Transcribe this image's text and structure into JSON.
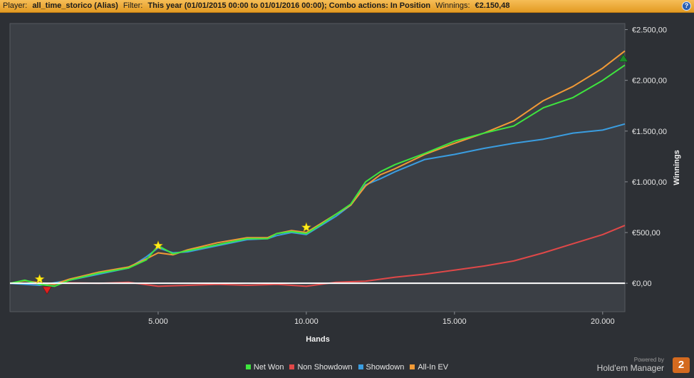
{
  "header": {
    "player_label": "Player:",
    "player_value": "all_time_storico (Alias)",
    "filter_label": "Filter:",
    "filter_value": "This year (01/01/2015 00:00 to 01/01/2016 00:00); Combo actions: In Position",
    "winnings_label": "Winnings:",
    "winnings_value": "€2.150,48",
    "help_glyph": "?"
  },
  "chart_data": {
    "type": "line",
    "xlabel": "Hands",
    "ylabel": "Winnings",
    "xlim": [
      0,
      20750
    ],
    "ylim": [
      -280,
      2560
    ],
    "x_ticks": [
      5000,
      10000,
      15000,
      20000
    ],
    "x_tick_labels": [
      "5.000",
      "10.000",
      "15.000",
      "20.000"
    ],
    "y_ticks": [
      0,
      500,
      1000,
      1500,
      2000,
      2500
    ],
    "y_tick_labels": [
      "€0,00",
      "€500,00",
      "€1.000,00",
      "€1.500,00",
      "€2.000,00",
      "€2.500,00"
    ],
    "grid": false,
    "legend_position": "bottom",
    "series": [
      {
        "name": "Net Won",
        "color": "#3ee63e",
        "x": [
          0,
          500,
          1000,
          1500,
          2000,
          3000,
          4000,
          4600,
          5000,
          5500,
          6000,
          7000,
          8000,
          8700,
          9000,
          9500,
          10000,
          10500,
          11000,
          11500,
          12000,
          12500,
          13000,
          14000,
          15000,
          16000,
          17000,
          18000,
          19000,
          20000,
          20750
        ],
        "y": [
          0,
          30,
          -10,
          -30,
          30,
          100,
          150,
          230,
          370,
          290,
          320,
          380,
          440,
          440,
          490,
          510,
          490,
          580,
          680,
          780,
          1000,
          1100,
          1170,
          1280,
          1400,
          1480,
          1550,
          1730,
          1830,
          2000,
          2150
        ]
      },
      {
        "name": "Non Showdown",
        "color": "#e04848",
        "x": [
          0,
          1000,
          2000,
          3000,
          4000,
          5000,
          6000,
          7000,
          8000,
          9000,
          10000,
          11000,
          12000,
          13000,
          14000,
          15000,
          16000,
          17000,
          18000,
          19000,
          20000,
          20750
        ],
        "y": [
          0,
          -10,
          5,
          0,
          10,
          -30,
          -20,
          -10,
          -20,
          -10,
          -30,
          10,
          20,
          60,
          90,
          130,
          170,
          220,
          300,
          390,
          480,
          570
        ]
      },
      {
        "name": "Showdown",
        "color": "#3a9de0",
        "x": [
          0,
          1000,
          2000,
          3000,
          4000,
          4600,
          5000,
          5500,
          6000,
          7000,
          8000,
          8700,
          9000,
          9500,
          10000,
          10500,
          11000,
          11500,
          12000,
          12500,
          13000,
          14000,
          15000,
          16000,
          17000,
          18000,
          19000,
          20000,
          20750
        ],
        "y": [
          0,
          -20,
          30,
          90,
          150,
          260,
          350,
          300,
          310,
          370,
          430,
          440,
          470,
          500,
          480,
          570,
          660,
          770,
          970,
          1030,
          1100,
          1220,
          1270,
          1330,
          1380,
          1420,
          1480,
          1510,
          1570
        ]
      },
      {
        "name": "All-In EV",
        "color": "#f29a36",
        "x": [
          0,
          500,
          1000,
          1500,
          2000,
          3000,
          4000,
          4600,
          5000,
          5500,
          6000,
          7000,
          8000,
          8700,
          9000,
          9500,
          10000,
          10500,
          11000,
          11500,
          12000,
          12500,
          13000,
          14000,
          15000,
          16000,
          17000,
          18000,
          19000,
          20000,
          20750
        ],
        "y": [
          0,
          25,
          5,
          -10,
          40,
          110,
          160,
          240,
          300,
          280,
          330,
          400,
          450,
          450,
          490,
          520,
          500,
          590,
          680,
          770,
          960,
          1070,
          1130,
          1270,
          1380,
          1480,
          1600,
          1800,
          1940,
          2120,
          2290
        ]
      }
    ],
    "markers": [
      {
        "type": "star",
        "color": "#ffef1c",
        "x": 1000,
        "y": 40
      },
      {
        "type": "star",
        "color": "#ffef1c",
        "x": 5000,
        "y": 370
      },
      {
        "type": "star",
        "color": "#ffef1c",
        "x": 10000,
        "y": 550
      },
      {
        "type": "triangle-down",
        "color": "#e02020",
        "x": 1250,
        "y": -70
      },
      {
        "type": "triangle-up",
        "color": "#1d8a2a",
        "x": 20700,
        "y": 2220
      }
    ]
  },
  "branding": {
    "powered_by": "Powered by",
    "product": "Hold'em Manager",
    "logo_glyph": "2"
  }
}
